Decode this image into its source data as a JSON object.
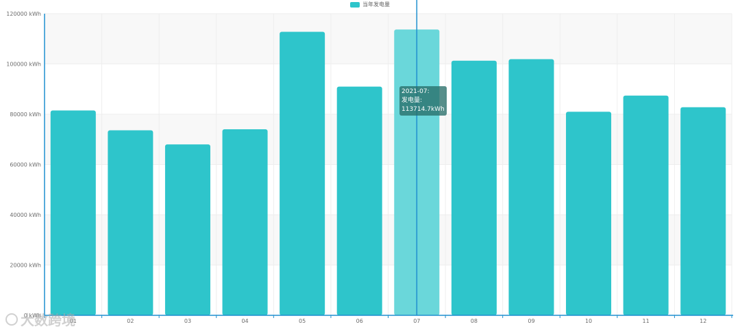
{
  "chart_data": {
    "type": "bar",
    "categories": [
      "01",
      "02",
      "03",
      "04",
      "05",
      "06",
      "07",
      "08",
      "09",
      "10",
      "11",
      "12"
    ],
    "series": [
      {
        "name": "当年发电量",
        "values": [
          81500,
          73600,
          68000,
          74000,
          112800,
          91000,
          113714.7,
          101300,
          101900,
          81000,
          87400,
          82800
        ]
      }
    ],
    "ylim": [
      0,
      120000
    ],
    "yticks": [
      0,
      20000,
      40000,
      60000,
      80000,
      100000,
      120000
    ],
    "ytick_labels": [
      "0 kWh",
      "20000 kWh",
      "40000 kWh",
      "60000 kWh",
      "80000 kWh",
      "100000 kWh",
      "120000 kWh"
    ],
    "grid": true,
    "legend_position": "top-center",
    "highlighted_index": 6,
    "colors": {
      "bar": "#2ec5cb",
      "bar_highlight": "#6ad7da",
      "axis": "#1f8fcf",
      "grid": "#eeeeee"
    }
  },
  "tooltip": {
    "line1": "2021-07:",
    "line2": "发电量:",
    "line3": "113714.7kWh"
  },
  "watermark": {
    "text": "大数跨境",
    "icon": "brand-logo-icon"
  }
}
